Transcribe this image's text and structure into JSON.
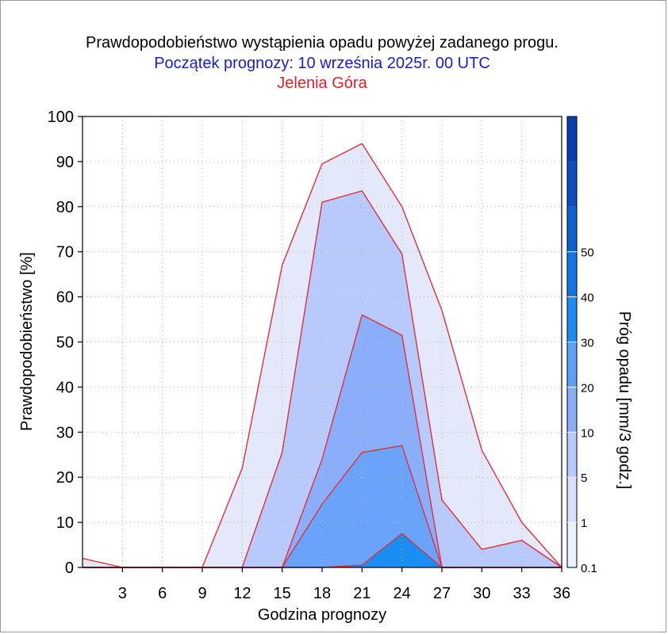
{
  "titles": {
    "line1": "Prawdopodobieństwo wystąpienia opadu powyżej zadanego progu.",
    "line2": "Początek prognozy: 10 września 2025r. 00 UTC",
    "line3": "Jelenia Góra"
  },
  "colors": {
    "title1": "#000000",
    "title2": "#1a1ad6",
    "title3": "#e0202a",
    "outline": "#e0303a",
    "grid": "#b8b8b8"
  },
  "chart_data": {
    "type": "area",
    "xlabel": "Godzina prognozy",
    "ylabel": "Prawdopodobieństwo [%]",
    "x": [
      0,
      3,
      6,
      9,
      12,
      15,
      18,
      21,
      24,
      27,
      30,
      33,
      36
    ],
    "xticks": [
      "3",
      "6",
      "9",
      "12",
      "15",
      "18",
      "21",
      "24",
      "27",
      "30",
      "33",
      "36"
    ],
    "xlim": [
      0,
      36
    ],
    "ylim": [
      0,
      100
    ],
    "yticks": [
      "0",
      "10",
      "20",
      "30",
      "40",
      "50",
      "60",
      "70",
      "80",
      "90",
      "100"
    ],
    "grid": true,
    "series": [
      {
        "name": "0.1",
        "color": "#e3e8fb",
        "values": [
          2,
          0,
          0,
          0,
          22,
          67,
          89.5,
          94,
          80,
          57,
          26,
          10,
          0
        ]
      },
      {
        "name": "1",
        "color": "#b8c9fb",
        "values": [
          0,
          0,
          0,
          0,
          0,
          25.5,
          81,
          83.5,
          69.5,
          15,
          4,
          6,
          0
        ]
      },
      {
        "name": "5",
        "color": "#8aaefa",
        "values": [
          0,
          0,
          0,
          0,
          0,
          0,
          24,
          56,
          51.5,
          0,
          0,
          0,
          0
        ]
      },
      {
        "name": "10",
        "color": "#6aa3fb",
        "values": [
          0,
          0,
          0,
          0,
          0,
          0,
          14,
          25.5,
          27,
          0,
          0,
          0,
          0
        ]
      },
      {
        "name": "20",
        "color": "#1a8ef3",
        "values": [
          0,
          0,
          0,
          0,
          0,
          0,
          0,
          0.5,
          7.5,
          0,
          0,
          0,
          0
        ]
      }
    ],
    "colorbar": {
      "label": "Próg opadu [mm/3 godz.]",
      "ticks": [
        "0.1",
        "1",
        "5",
        "10",
        "20",
        "30",
        "40",
        "50"
      ],
      "bands": [
        "#edf0fd",
        "#d8e0fc",
        "#b8c9fb",
        "#8aaefa",
        "#5ea0f8",
        "#1a8ef3",
        "#1476e4",
        "#0f60d0",
        "#0c4ebd",
        "#0a3fae"
      ]
    }
  }
}
